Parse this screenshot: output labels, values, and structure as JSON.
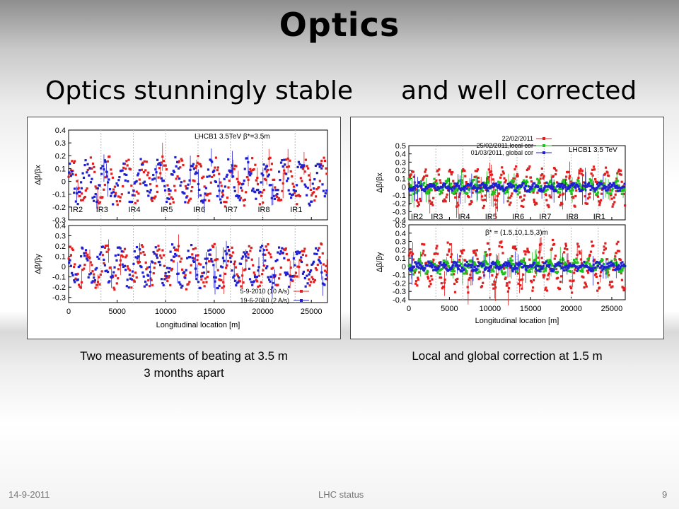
{
  "slide": {
    "title": "Optics",
    "subtitle_left": "Optics stunningly stable",
    "subtitle_right": "and well corrected",
    "caption_left_line1": "Two measurements of beating at 3.5 m",
    "caption_left_line2": "3 months apart",
    "caption_right": "Local and global correction at 1.5 m",
    "footer_date": "14-9-2011",
    "footer_center": "LHC status",
    "footer_page": "9"
  },
  "chart_data": [
    {
      "type": "scatter",
      "header": "LHCB1 3.5TeV  β*=3.5m",
      "xlabel": "Longitudinal location [m]",
      "xlim": [
        0,
        26659
      ],
      "xticks": [
        0,
        5000,
        10000,
        15000,
        20000,
        25000
      ],
      "ir_labels": [
        "IR2",
        "IR3",
        "IR4",
        "IR5",
        "IR6",
        "IR7",
        "IR8",
        "IR1"
      ],
      "ir_positions": [
        0,
        3332,
        6664,
        9997,
        13329,
        16661,
        19994,
        23326
      ],
      "subplots": [
        {
          "ylabel": "Δβ/βx",
          "ylim": [
            -0.3,
            0.4
          ],
          "yticks": [
            0.4,
            0.3,
            0.2,
            0.1,
            0,
            -0.1,
            -0.2,
            -0.3
          ],
          "series": [
            {
              "name": "5-9-2010 (10 A/s)",
              "color": "#e02020",
              "amplitude": 0.14,
              "spread": 0.06
            },
            {
              "name": "19-6-2010 (2 A/s)",
              "color": "#2020d0",
              "amplitude": 0.13,
              "spread": 0.06
            }
          ]
        },
        {
          "ylabel": "Δβ/βy",
          "ylim": [
            -0.35,
            0.4
          ],
          "yticks": [
            0.4,
            0.3,
            0.2,
            0.1,
            0,
            -0.1,
            -0.2,
            -0.3
          ],
          "series": [
            {
              "name": "5-9-2010 (10 A/s)",
              "color": "#e02020",
              "amplitude": 0.16,
              "spread": 0.07
            },
            {
              "name": "19-6-2010 (2 A/s)",
              "color": "#2020d0",
              "amplitude": 0.15,
              "spread": 0.07
            }
          ]
        }
      ]
    },
    {
      "type": "scatter",
      "header": "LHCB1 3.5 TeV",
      "annotation": "β* = (1.5,10,1.5,3)m",
      "xlabel": "Longitudinal location [m]",
      "xlim": [
        0,
        26659
      ],
      "xticks": [
        0,
        5000,
        10000,
        15000,
        20000,
        25000
      ],
      "ir_labels": [
        "IR2",
        "IR3",
        "IR4",
        "IR5",
        "IR6",
        "IR7",
        "IR8",
        "IR1"
      ],
      "ir_positions": [
        0,
        3332,
        6664,
        9997,
        13329,
        16661,
        19994,
        23326
      ],
      "subplots": [
        {
          "ylabel": "Δβ/βx",
          "ylim": [
            -0.4,
            0.5
          ],
          "yticks": [
            0.5,
            0.4,
            0.3,
            0.2,
            0.1,
            0,
            -0.1,
            -0.2,
            -0.3,
            -0.4
          ],
          "series": [
            {
              "name": "22/02/2011",
              "color": "#e02020",
              "amplitude": 0.2,
              "spread": 0.06
            },
            {
              "name": "25/02/2011,local cor",
              "color": "#20c020",
              "amplitude": 0.06,
              "spread": 0.04
            },
            {
              "name": "01/03/2011, global cor",
              "color": "#2020d0",
              "amplitude": 0.03,
              "spread": 0.03
            }
          ]
        },
        {
          "ylabel": "Δβ/βy",
          "ylim": [
            -0.4,
            0.5
          ],
          "yticks": [
            0.5,
            0.4,
            0.3,
            0.2,
            0.1,
            0,
            -0.1,
            -0.2,
            -0.3,
            -0.4
          ],
          "series": [
            {
              "name": "22/02/2011",
              "color": "#e02020",
              "amplitude": 0.24,
              "spread": 0.08
            },
            {
              "name": "25/02/2011,local cor",
              "color": "#20c020",
              "amplitude": 0.06,
              "spread": 0.04
            },
            {
              "name": "01/03/2011, global cor",
              "color": "#2020d0",
              "amplitude": 0.03,
              "spread": 0.03
            }
          ]
        }
      ]
    }
  ]
}
